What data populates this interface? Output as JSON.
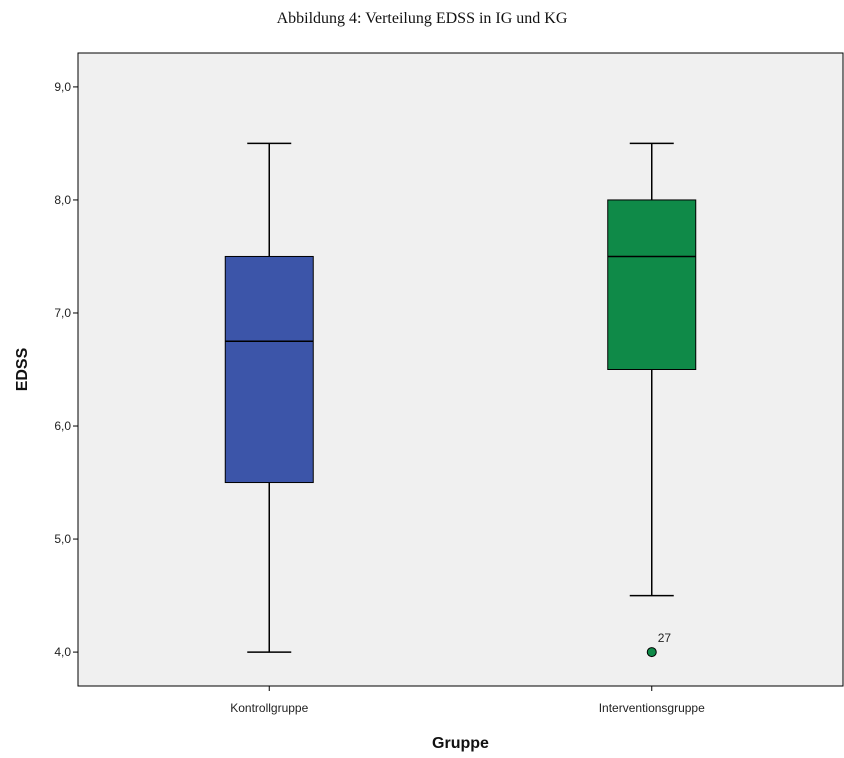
{
  "caption": "Abbildung 4: Verteilung EDSS in IG und KG",
  "chart_data": {
    "type": "boxplot",
    "xlabel": "Gruppe",
    "ylabel": "EDSS",
    "ylim": [
      3.7,
      9.3
    ],
    "yticks": [
      4.0,
      5.0,
      6.0,
      7.0,
      8.0,
      9.0
    ],
    "ytick_labels": [
      "4,0",
      "5,0",
      "6,0",
      "7,0",
      "8,0",
      "9,0"
    ],
    "categories": [
      "Kontrollgruppe",
      "Interventionsgruppe"
    ],
    "grid": false,
    "background_color": "#f0f0f0",
    "boxes": [
      {
        "category": "Kontrollgruppe",
        "whisker_low": 4.0,
        "q1": 5.5,
        "median": 6.75,
        "q3": 7.5,
        "whisker_high": 8.5,
        "color": "#3c55a9",
        "outliers": []
      },
      {
        "category": "Interventionsgruppe",
        "whisker_low": 4.5,
        "q1": 6.5,
        "median": 7.5,
        "q3": 8.0,
        "whisker_high": 8.5,
        "color": "#0f8a48",
        "outliers": [
          {
            "value": 4.0,
            "label": "27"
          }
        ]
      }
    ]
  }
}
